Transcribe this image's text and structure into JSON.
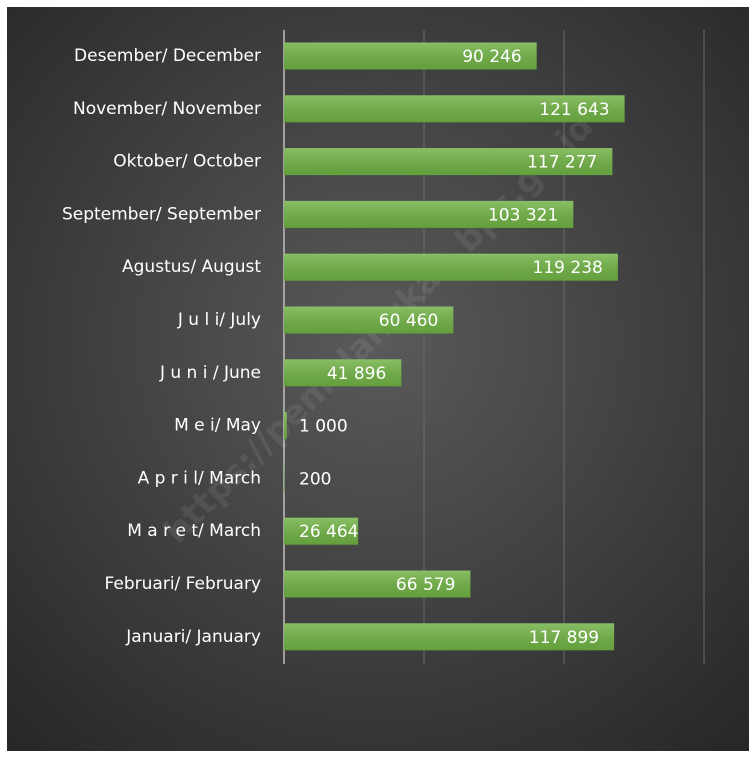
{
  "chart_data": {
    "type": "bar",
    "orientation": "horizontal",
    "categories": [
      "Januari/ January",
      "Februari/ February",
      "M a r e t/ March",
      "A p r i l/ March",
      "M e i/ May",
      "J u n i / June",
      "J u l i/ July",
      "Agustus/ August",
      "September/ September",
      "Oktober/ October",
      "November/ November",
      "Desember/ December"
    ],
    "values": [
      117899,
      66579,
      26464,
      200,
      1000,
      41896,
      60460,
      119238,
      103321,
      117277,
      121643,
      90246
    ],
    "value_labels": [
      "117 899",
      "66 579",
      "26 464",
      "200",
      "1 000",
      "41 896",
      "60 460",
      "119 238",
      "103 321",
      "117 277",
      "121 643",
      "90 246"
    ],
    "color": "#70b244",
    "xlim": [
      0,
      150000
    ],
    "xticks": [
      0,
      50000,
      100000,
      150000
    ],
    "grid": true,
    "watermark": "https://pemalangkab.bps.go.id"
  }
}
